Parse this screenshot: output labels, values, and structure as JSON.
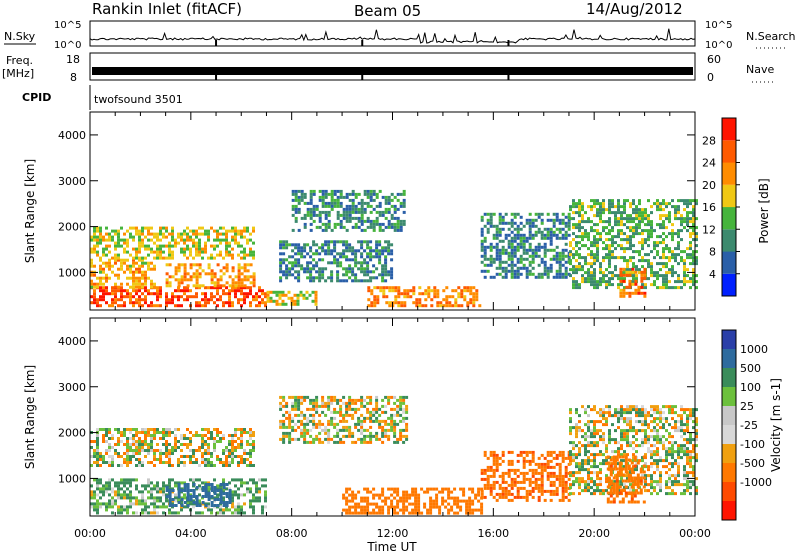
{
  "header": {
    "site": "Rankin Inlet (fitACF)",
    "beam": "Beam 05",
    "date": "14/Aug/2012"
  },
  "strip_labels": {
    "nsky": "N.Sky",
    "nsky_hi": "10^5",
    "nsky_lo": "10^0",
    "nsky_hi_r": "10^5",
    "nsky_lo_r": "10^0",
    "nsearch": "N.Search",
    "freq": "Freq.",
    "freq_unit": "[MHz]",
    "freq_hi": "18",
    "freq_lo": "8",
    "nave_hi": "60",
    "nave_lo": "0",
    "nave": "Nave",
    "cpid": "CPID",
    "cpid_value": "twofsound 3501"
  },
  "axes": {
    "ylabel": "Slant Range [km]",
    "xlabel": "Time UT",
    "y_ticks": [
      "1000",
      "2000",
      "3000",
      "4000"
    ],
    "x_ticks": [
      "00:00",
      "04:00",
      "08:00",
      "12:00",
      "16:00",
      "20:00",
      "00:00"
    ]
  },
  "colors": {
    "power": [
      "#0020ff",
      "#2a5fa8",
      "#3c8a6e",
      "#46b43c",
      "#f0c814",
      "#ff8c00",
      "#ff5a00",
      "#ff1400"
    ],
    "velocity": [
      "#2a3fa8",
      "#2e6b9e",
      "#3a8c5a",
      "#6cc03c",
      "#c8c8c8",
      "#d8d8d8",
      "#f0a010",
      "#ff7800",
      "#ff4a00",
      "#ff1400"
    ]
  },
  "chart_data": [
    {
      "type": "heatmap",
      "title": "Power",
      "colorbar_label": "Power [dB]",
      "colorbar_ticks": [
        "4",
        "8",
        "12",
        "16",
        "20",
        "24",
        "28"
      ],
      "x_range_hours": [
        0,
        24
      ],
      "y_range_km": [
        180,
        4500
      ],
      "ylabel": "Slant Range [km]",
      "regions": [
        {
          "t0": 0.0,
          "t1": 7.0,
          "r0": 250,
          "r1": 700,
          "value_db": 27
        },
        {
          "t0": 0.0,
          "t1": 2.5,
          "r0": 700,
          "r1": 1300,
          "value_db": 20
        },
        {
          "t0": 0.0,
          "t1": 6.5,
          "r0": 1300,
          "r1": 2000,
          "value_db": 17
        },
        {
          "t0": 3.0,
          "t1": 6.5,
          "r0": 700,
          "r1": 1200,
          "value_db": 21
        },
        {
          "t0": 7.0,
          "t1": 9.0,
          "r0": 300,
          "r1": 600,
          "value_db": 18
        },
        {
          "t0": 7.5,
          "t1": 12.0,
          "r0": 800,
          "r1": 1700,
          "value_db": 9
        },
        {
          "t0": 8.0,
          "t1": 12.5,
          "r0": 1900,
          "r1": 2800,
          "value_db": 10
        },
        {
          "t0": 11.0,
          "t1": 15.5,
          "r0": 250,
          "r1": 700,
          "value_db": 23
        },
        {
          "t0": 15.5,
          "t1": 19.0,
          "r0": 900,
          "r1": 2300,
          "value_db": 9
        },
        {
          "t0": 19.0,
          "t1": 24.0,
          "r0": 700,
          "r1": 2600,
          "value_db": 13
        },
        {
          "t0": 21.0,
          "t1": 22.0,
          "r0": 500,
          "r1": 1100,
          "value_db": 24
        }
      ]
    },
    {
      "type": "heatmap",
      "title": "Velocity",
      "colorbar_label": "Velocity [m s-1]",
      "colorbar_ticks": [
        "1000",
        "500",
        "100",
        "25",
        "-25",
        "-100",
        "-500",
        "-1000"
      ],
      "x_range_hours": [
        0,
        24
      ],
      "y_range_km": [
        180,
        4500
      ],
      "ylabel": "Slant Range [km]",
      "regions": [
        {
          "t0": 0.0,
          "t1": 7.0,
          "r0": 250,
          "r1": 1000,
          "value_ms": 150
        },
        {
          "t0": 3.0,
          "t1": 5.5,
          "r0": 400,
          "r1": 900,
          "value_ms": 700
        },
        {
          "t0": 0.0,
          "t1": 6.5,
          "r0": 1300,
          "r1": 2100,
          "value_ms": 0
        },
        {
          "t0": 7.5,
          "t1": 12.5,
          "r0": 1800,
          "r1": 2800,
          "value_ms": 0
        },
        {
          "t0": 10.0,
          "t1": 15.5,
          "r0": 250,
          "r1": 800,
          "value_ms": -300
        },
        {
          "t0": 15.5,
          "t1": 19.0,
          "r0": 500,
          "r1": 1600,
          "value_ms": -400
        },
        {
          "t0": 19.0,
          "t1": 24.0,
          "r0": 700,
          "r1": 2600,
          "value_ms": 20
        },
        {
          "t0": 20.5,
          "t1": 22.0,
          "r0": 500,
          "r1": 1500,
          "value_ms": -350
        }
      ]
    }
  ]
}
